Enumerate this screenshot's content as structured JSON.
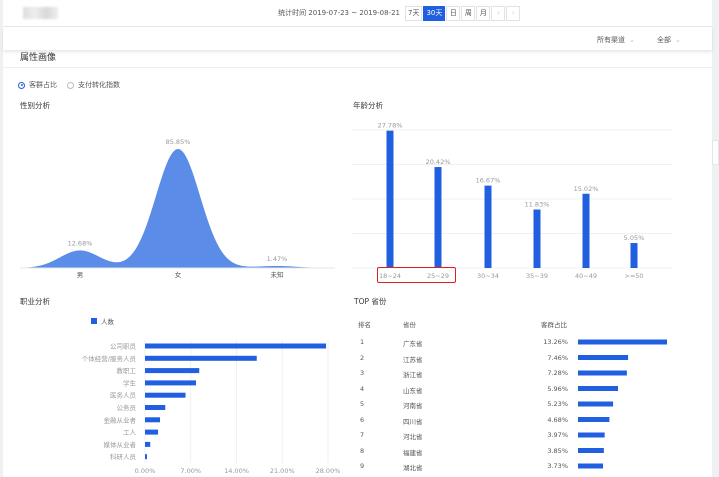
{
  "header": {
    "range_label": "统计时间 2019-07-23 ~ 2019-08-21",
    "period_buttons": [
      {
        "label": "7天",
        "active": false
      },
      {
        "label": "30天",
        "active": true
      },
      {
        "label": "日",
        "active": false
      },
      {
        "label": "周",
        "active": false
      },
      {
        "label": "月",
        "active": false
      }
    ],
    "prev_icon": "chevron-left-icon",
    "next_icon": "chevron-right-icon"
  },
  "filters": [
    {
      "label": "所有渠道"
    },
    {
      "label": "全部"
    }
  ],
  "section_title": "属性画像",
  "radios": [
    {
      "label": "客群占比",
      "checked": true
    },
    {
      "label": "支付转化指数",
      "checked": false
    }
  ],
  "accent_color": "#1f5fe0",
  "chart_data": [
    {
      "type": "area",
      "title": "性别分析",
      "categories": [
        "男",
        "女",
        "未知"
      ],
      "values": [
        12.68,
        85.85,
        1.47
      ],
      "data_labels": [
        "12.68%",
        "85.85%",
        "1.47%"
      ],
      "color": "#5b8de8"
    },
    {
      "type": "bar",
      "title": "年龄分析",
      "categories": [
        "18~24",
        "25~29",
        "30~34",
        "35~39",
        "40~49",
        ">=50"
      ],
      "values": [
        27.78,
        20.42,
        16.67,
        11.83,
        15.02,
        5.05
      ],
      "data_labels": [
        "27.78%",
        "20.42%",
        "16.67%",
        "11.83%",
        "15.02%",
        "5.05%"
      ],
      "ylim": [
        0,
        28
      ],
      "grid": true,
      "highlighted_categories": [
        "18~24",
        "25~29"
      ],
      "color": "#1f5fe0"
    },
    {
      "type": "bar",
      "orientation": "horizontal",
      "title": "职业分析",
      "legend": "人数",
      "legend_position": "top",
      "categories": [
        "公司职员",
        "个体经营/服务人员",
        "教职工",
        "学生",
        "医务人员",
        "公务员",
        "金融从业者",
        "工人",
        "媒体从业者",
        "科研人员"
      ],
      "values": [
        27.7,
        17.1,
        8.3,
        7.8,
        6.2,
        3.1,
        2.3,
        2.0,
        0.8,
        0.3
      ],
      "xticks": [
        "0.00%",
        "7.00%",
        "14.00%",
        "21.00%",
        "28.00%"
      ],
      "xlim": [
        0,
        28
      ],
      "color": "#1f5fe0"
    }
  ],
  "top_provinces": {
    "title": "TOP 省份",
    "columns": [
      "排名",
      "省份",
      "客群占比"
    ],
    "rows": [
      {
        "rank": "1",
        "name": "广东省",
        "pct": "13.26%",
        "value": 13.26
      },
      {
        "rank": "2",
        "name": "江苏省",
        "pct": "7.46%",
        "value": 7.46
      },
      {
        "rank": "3",
        "name": "浙江省",
        "pct": "7.28%",
        "value": 7.28
      },
      {
        "rank": "4",
        "name": "山东省",
        "pct": "5.96%",
        "value": 5.96
      },
      {
        "rank": "5",
        "name": "河南省",
        "pct": "5.23%",
        "value": 5.23
      },
      {
        "rank": "6",
        "name": "四川省",
        "pct": "4.68%",
        "value": 4.68
      },
      {
        "rank": "7",
        "name": "河北省",
        "pct": "3.97%",
        "value": 3.97
      },
      {
        "rank": "8",
        "name": "福建省",
        "pct": "3.85%",
        "value": 3.85
      },
      {
        "rank": "9",
        "name": "湖北省",
        "pct": "3.73%",
        "value": 3.73
      }
    ]
  }
}
